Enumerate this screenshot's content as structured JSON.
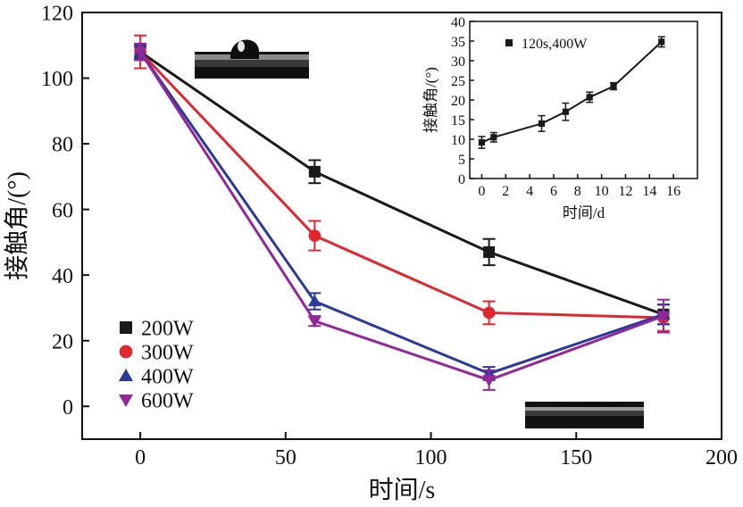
{
  "chart_data": [
    {
      "type": "line",
      "xlabel": "时间/s",
      "ylabel": "接触角/(°)",
      "xlim": [
        -20,
        200
      ],
      "ylim": [
        -10,
        120
      ],
      "xticks": [
        0,
        50,
        100,
        150,
        200
      ],
      "yticks": [
        0,
        20,
        40,
        60,
        80,
        100,
        120
      ],
      "grid": false,
      "legend_position": "bottom-left",
      "series": [
        {
          "name": "200W",
          "marker": "square",
          "color": "#1a1a1a",
          "x": [
            0,
            60,
            120,
            180
          ],
          "y": [
            108,
            71.5,
            47,
            28
          ],
          "err": [
            2.5,
            3.5,
            4,
            3
          ]
        },
        {
          "name": "300W",
          "marker": "circle",
          "color": "#e0262f",
          "x": [
            0,
            60,
            120,
            180
          ],
          "y": [
            108,
            52,
            28.5,
            27
          ],
          "err": [
            5,
            4.5,
            3.5,
            4
          ]
        },
        {
          "name": "400W",
          "marker": "triangle-up",
          "color": "#2b3a9a",
          "x": [
            0,
            60,
            120,
            180
          ],
          "y": [
            108,
            32,
            10,
            28
          ],
          "err": [
            2,
            2.5,
            2,
            3
          ]
        },
        {
          "name": "600W",
          "marker": "triangle-down",
          "color": "#93279a",
          "x": [
            0,
            60,
            120,
            180
          ],
          "y": [
            108,
            26,
            8,
            27.5
          ],
          "err": [
            2.5,
            1.5,
            3,
            5
          ]
        }
      ]
    },
    {
      "type": "line",
      "inset": true,
      "xlabel": "时间/d",
      "ylabel": "接触角/(°)",
      "xlim": [
        -1,
        18
      ],
      "ylim": [
        0,
        40
      ],
      "xticks": [
        0,
        2,
        4,
        6,
        8,
        10,
        12,
        14,
        16
      ],
      "yticks": [
        0,
        5,
        10,
        15,
        20,
        25,
        30,
        35,
        40
      ],
      "grid": false,
      "legend_position": "top-left",
      "series": [
        {
          "name": "120s,400W",
          "marker": "square",
          "color": "#1a1a1a",
          "x": [
            0,
            1,
            5,
            7,
            9,
            11,
            15
          ],
          "y": [
            9.2,
            10.5,
            14,
            17,
            20.7,
            23.5,
            34.8
          ],
          "err": [
            1.5,
            1.2,
            2,
            2.2,
            1.3,
            0.9,
            1.3
          ]
        }
      ]
    }
  ],
  "droplet_images": [
    {
      "kind": "droplet-photo-high-contact-angle",
      "position": "top-left"
    },
    {
      "kind": "droplet-photo-low-contact-angle",
      "position": "bottom-right"
    }
  ]
}
